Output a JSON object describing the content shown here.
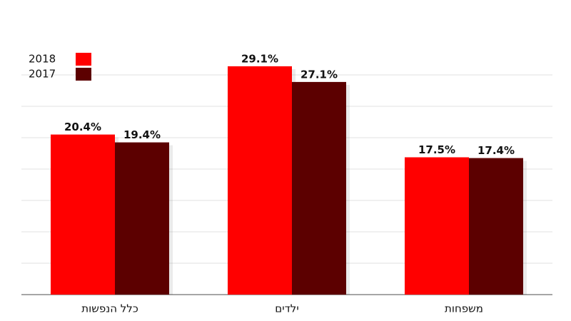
{
  "chart_data": {
    "type": "bar",
    "categories": [
      "כלל הנפשות",
      "ילדים",
      "משפחות"
    ],
    "series": [
      {
        "name": "2018",
        "color": "#ff0000",
        "values": [
          20.4,
          29.1,
          17.5
        ],
        "value_labels": [
          "20.4%",
          "29.1%",
          "17.5%"
        ]
      },
      {
        "name": "2017",
        "color": "#5c0000",
        "values": [
          19.4,
          27.1,
          17.4
        ],
        "value_labels": [
          "19.4%",
          "27.1%",
          "17.4%"
        ]
      }
    ],
    "ylim": [
      0,
      32
    ],
    "yticks": [
      4,
      8,
      12,
      16,
      20,
      24,
      28
    ],
    "grid": true,
    "legend": "top-left"
  }
}
